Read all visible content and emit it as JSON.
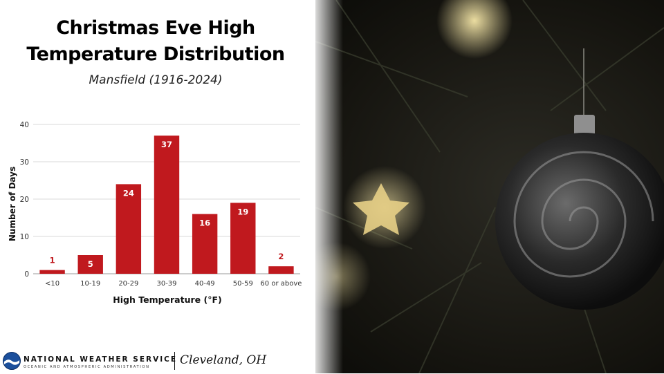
{
  "title_line1": "Christmas Eve High",
  "title_line2": "Temperature Distribution",
  "subtitle": "Mansfield (1916-2024)",
  "footer": {
    "agency": "NATIONAL WEATHER SERVICE",
    "agency_sub": "OCEANIC AND ATMOSPHERIC ADMINISTRATION",
    "office": "Cleveland, OH"
  },
  "colors": {
    "bar": "#c0191e",
    "label_outside": "#c0191e",
    "label_inside": "#ffffff",
    "grid": "#d9d9d9"
  },
  "photo_icon": "christmas-ornament-photo",
  "chart_data": {
    "type": "bar",
    "categories": [
      "<10",
      "10-19",
      "20-29",
      "30-39",
      "40-49",
      "50-59",
      "60 or above"
    ],
    "values": [
      1,
      5,
      24,
      37,
      16,
      19,
      2
    ],
    "title": "",
    "xlabel": "High Temperature (°F)",
    "ylabel": "Number of Days",
    "ylim": [
      0,
      40
    ],
    "yticks": [
      0,
      10,
      20,
      30,
      40
    ],
    "grid": true,
    "legend": "none"
  }
}
